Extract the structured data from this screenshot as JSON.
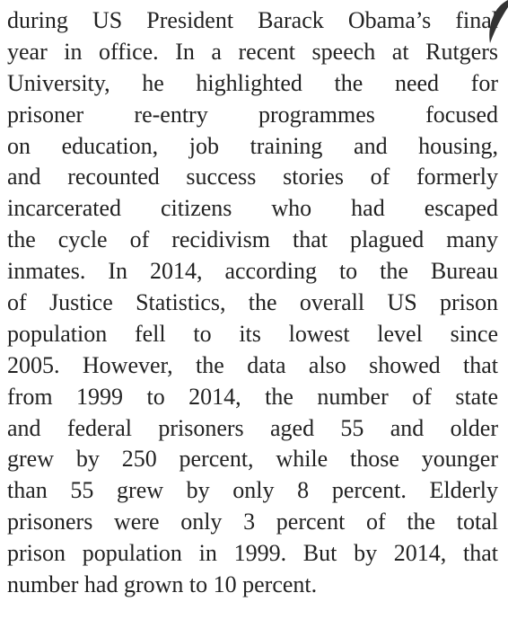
{
  "paragraph": {
    "lines": [
      "during US President Barack Obama’s final",
      "year in office. In a recent speech at Rutgers",
      "University, he highlighted the need for",
      "prisoner re-entry programmes focused",
      "on education, job training and housing,",
      "and recounted success stories of formerly",
      "incarcerated citizens who had escaped",
      "the cycle of recidivism that plagued many",
      "inmates. In 2014, according to the Bureau",
      "of Justice Statistics, the overall US prison",
      "population fell to its lowest level since",
      "2005. However, the data also showed that",
      "from 1999 to 2014, the number of state",
      "and federal prisoners aged 55 and older",
      "grew by 250 percent, while those younger",
      "than 55 grew by only 8 percent. Elderly",
      "prisoners were only 3 percent of the total",
      "prison population in 1999. But by 2014, that",
      "number had grown to 10 percent."
    ]
  }
}
